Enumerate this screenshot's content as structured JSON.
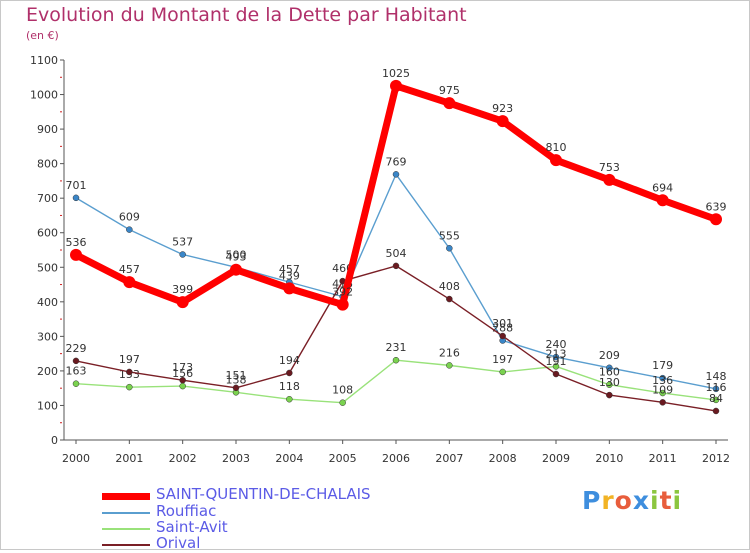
{
  "title": "Evolution du Montant de la Dette par Habitant",
  "subtitle": "(en €)",
  "logo": {
    "letters": [
      "P",
      "r",
      "o",
      "x",
      "i",
      "t",
      "i"
    ],
    "colors": [
      "#3e8ede",
      "#f2b324",
      "#e85d3c",
      "#3e8ede",
      "#8cc63f",
      "#e85d3c",
      "#8cc63f"
    ]
  },
  "chart_data": {
    "type": "line",
    "x": [
      "2000",
      "2001",
      "2002",
      "2003",
      "2004",
      "2005",
      "2006",
      "2007",
      "2008",
      "2009",
      "2010",
      "2011",
      "2012"
    ],
    "ylim": [
      0,
      1100
    ],
    "yticks": [
      "0",
      "100",
      "200",
      "300",
      "400",
      "500",
      "600",
      "700",
      "800",
      "900",
      "1000",
      "1100"
    ],
    "grid": false,
    "legend_position": "bottom-left",
    "series": [
      {
        "name": "Rouffiac",
        "color": "#5a9ecf",
        "values": [
          701,
          609,
          537,
          500,
          457,
          415,
          769,
          555,
          288,
          240,
          209,
          179,
          148
        ],
        "labels": [
          "701",
          "609",
          "537",
          "500",
          "457",
          "415",
          "769",
          "555",
          "288",
          "240",
          "209",
          "179",
          "148"
        ]
      },
      {
        "name": "Saint-Avit",
        "color": "#99e27a",
        "values": [
          163,
          153,
          156,
          138,
          118,
          108,
          231,
          216,
          197,
          213,
          160,
          136,
          116
        ],
        "labels": [
          "163",
          "153",
          "156",
          "138",
          "118",
          "108",
          "231",
          "216",
          "197",
          "213",
          "160",
          "136",
          "116"
        ]
      },
      {
        "name": "Orival",
        "color": "#7a1f26",
        "values": [
          229,
          197,
          173,
          151,
          194,
          460,
          504,
          408,
          301,
          191,
          130,
          109,
          84
        ],
        "labels": [
          "229",
          "197",
          "173",
          "151",
          "194",
          "460",
          "504",
          "408",
          "301",
          "191",
          "130",
          "109",
          "84"
        ]
      },
      {
        "name": "SAINT-QUENTIN-DE-CHALAIS",
        "color": "#ff0000",
        "values": [
          536,
          457,
          399,
          493,
          439,
          392,
          1025,
          975,
          923,
          810,
          753,
          694,
          639
        ],
        "labels": [
          "536",
          "457",
          "399",
          "493",
          "439",
          "392",
          "1025",
          "975",
          "923",
          "810",
          "753",
          "694",
          "639"
        ]
      }
    ]
  },
  "legend": [
    {
      "label": "SAINT-QUENTIN-DE-CHALAIS",
      "color": "#ff0000",
      "text_color": "#5b5be6",
      "thickness": 7
    },
    {
      "label": "Rouffiac",
      "color": "#5a9ecf",
      "text_color": "#5b5be6",
      "thickness": 2
    },
    {
      "label": "Saint-Avit",
      "color": "#99e27a",
      "text_color": "#5b5be6",
      "thickness": 2
    },
    {
      "label": "Orival",
      "color": "#7a1f26",
      "text_color": "#5b5be6",
      "thickness": 2
    }
  ]
}
